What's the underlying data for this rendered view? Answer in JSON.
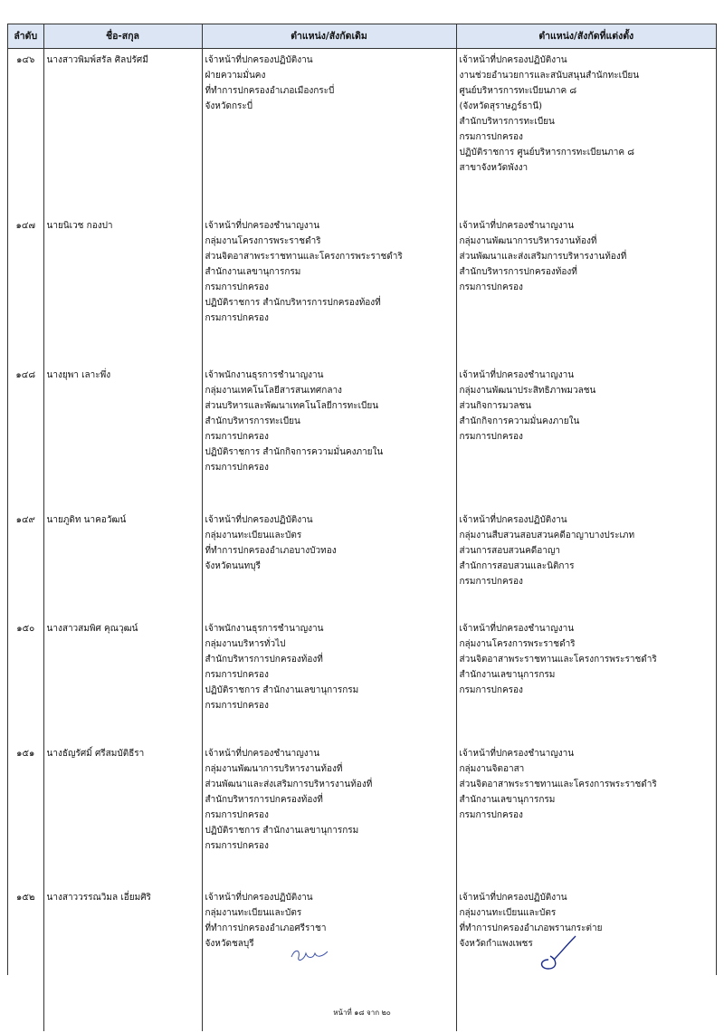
{
  "table": {
    "headers": [
      "ลำดับ",
      "ชื่อ-สกุล",
      "ตำแหน่ง/สังกัดเดิม",
      "ตำแหน่ง/สังกัดที่แต่งตั้ง"
    ],
    "rows": [
      {
        "no": "๑๔๖",
        "name": "นางสาวพิมพ์สรัล ศิลปรัศมี",
        "old": [
          "เจ้าหน้าที่ปกครองปฏิบัติงาน",
          "ฝ่ายความมั่นคง",
          "ที่ทำการปกครองอำเภอเมืองกระบี่",
          "จังหวัดกระบี่"
        ],
        "new": [
          "เจ้าหน้าที่ปกครองปฏิบัติงาน",
          "งานช่วยอำนวยการและสนับสนุนสำนักทะเบียน",
          "ศูนย์บริหารการทะเบียนภาค ๘",
          "(จังหวัดสุราษฎร์ธานี)",
          "สำนักบริหารการทะเบียน",
          "กรมการปกครอง",
          "ปฏิบัติราชการ ศูนย์บริหารการทะเบียนภาค ๘",
          "สาขาจังหวัดพังงา"
        ]
      },
      {
        "no": "๑๔๗",
        "name": "นายนิเวช กองปา",
        "old": [
          "เจ้าหน้าที่ปกครองชำนาญงาน",
          "กลุ่มงานโครงการพระราชดำริ",
          "ส่วนจิตอาสาพระราชทานและโครงการพระราชดำริ",
          "สำนักงานเลขานุการกรม",
          "กรมการปกครอง",
          "ปฏิบัติราชการ สำนักบริหารการปกครองท้องที่",
          "กรมการปกครอง"
        ],
        "new": [
          "เจ้าหน้าที่ปกครองชำนาญงาน",
          "กลุ่มงานพัฒนาการบริหารงานท้องที่",
          "ส่วนพัฒนาและส่งเสริมการบริหารงานท้องที่",
          "สำนักบริหารการปกครองท้องที่",
          "กรมการปกครอง"
        ]
      },
      {
        "no": "๑๔๘",
        "name": "นางยุพา เลาะพึ่ง",
        "old": [
          "เจ้าพนักงานธุรการชำนาญงาน",
          "กลุ่มงานเทคโนโลยีสารสนเทศกลาง",
          "ส่วนบริหารและพัฒนาเทคโนโลยีการทะเบียน",
          "สำนักบริหารการทะเบียน",
          "กรมการปกครอง",
          "ปฏิบัติราชการ สำนักกิจการความมั่นคงภายใน",
          "กรมการปกครอง"
        ],
        "new": [
          "เจ้าหน้าที่ปกครองชำนาญงาน",
          "กลุ่มงานพัฒนาประสิทธิภาพมวลชน",
          "ส่วนกิจการมวลชน",
          "สำนักกิจการความมั่นคงภายใน",
          "กรมการปกครอง"
        ]
      },
      {
        "no": "๑๔๙",
        "name": "นายภูดิท นาคอวัฒน์",
        "old": [
          "เจ้าหน้าที่ปกครองปฏิบัติงาน",
          "กลุ่มงานทะเบียนและบัตร",
          "ที่ทำการปกครองอำเภอบางบัวทอง",
          "จังหวัดนนทบุรี"
        ],
        "new": [
          "เจ้าหน้าที่ปกครองปฏิบัติงาน",
          "กลุ่มงานสืบสวนสอบสวนคดีอาญาบางประเภท",
          "ส่วนการสอบสวนคดีอาญา",
          "สำนักการสอบสวนและนิติการ",
          "กรมการปกครอง"
        ]
      },
      {
        "no": "๑๕๐",
        "name": "นางสาวสมพิศ คุณวุฒน์",
        "old": [
          "เจ้าพนักงานธุรการชำนาญงาน",
          "กลุ่มงานบริหารทั่วไป",
          "สำนักบริหารการปกครองท้องที่",
          "กรมการปกครอง",
          "ปฏิบัติราชการ สำนักงานเลขานุการกรม",
          "กรมการปกครอง"
        ],
        "new": [
          "เจ้าหน้าที่ปกครองชำนาญงาน",
          "กลุ่มงานโครงการพระราชดำริ",
          "ส่วนจิตอาสาพระราชทานและโครงการพระราชดำริ",
          "สำนักงานเลขานุการกรม",
          "กรมการปกครอง"
        ]
      },
      {
        "no": "๑๕๑",
        "name": "นางธัญรัศมิ์ ศรีสมบัติธีรา",
        "old": [
          "เจ้าหน้าที่ปกครองชำนาญงาน",
          "กลุ่มงานพัฒนาการบริหารงานท้องที่",
          "ส่วนพัฒนาและส่งเสริมการบริหารงานท้องที่",
          "สำนักบริหารการปกครองท้องที่",
          "กรมการปกครอง",
          "ปฏิบัติราชการ สำนักงานเลขานุการกรม",
          "กรมการปกครอง"
        ],
        "new": [
          "เจ้าหน้าที่ปกครองชำนาญงาน",
          "กลุ่มงานจิตอาสา",
          "ส่วนจิตอาสาพระราชทานและโครงการพระราชดำริ",
          "สำนักงานเลขานุการกรม",
          "กรมการปกครอง"
        ]
      },
      {
        "no": "๑๕๒",
        "name": "นางสาววรรณวิมล เอี่ยมศิริ",
        "old": [
          "เจ้าหน้าที่ปกครองปฏิบัติงาน",
          "กลุ่มงานทะเบียนและบัตร",
          "ที่ทำการปกครองอำเภอศรีราชา",
          "จังหวัดชลบุรี"
        ],
        "new": [
          "เจ้าหน้าที่ปกครองปฏิบัติงาน",
          "กลุ่มงานทะเบียนและบัตร",
          "ที่ทำการปกครองอำเภอพรานกระต่าย",
          "จังหวัดกำแพงเพชร"
        ]
      }
    ]
  },
  "footer": "หน้าที่ ๑๘ จาก ๒๐"
}
